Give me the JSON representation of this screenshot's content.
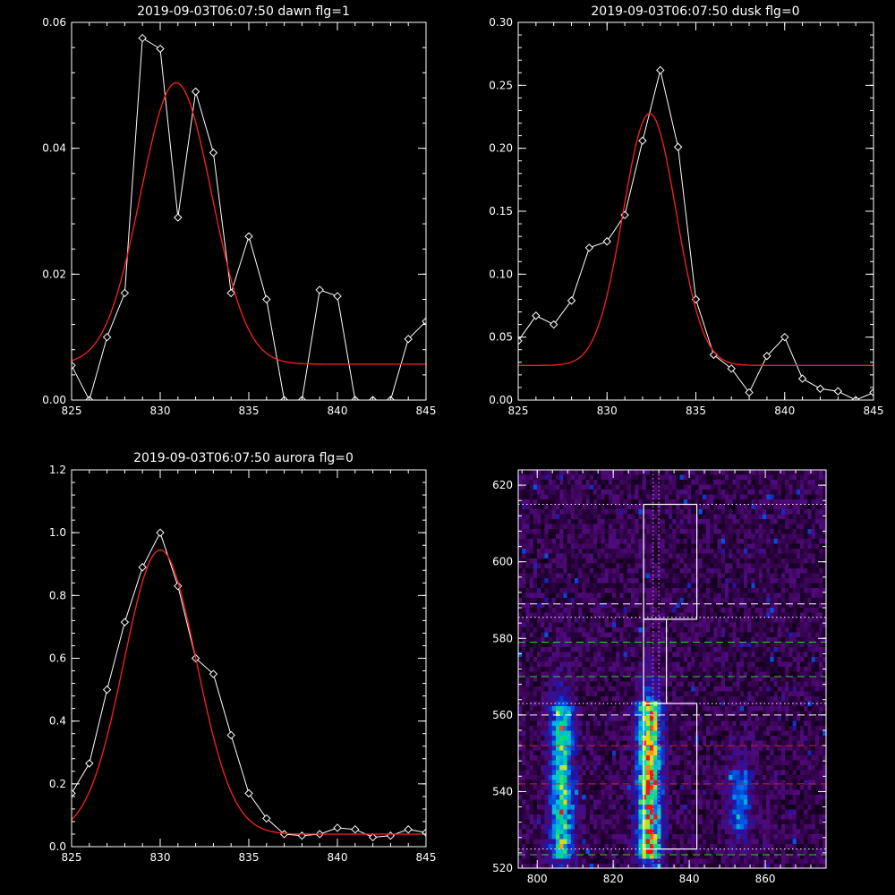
{
  "colors": {
    "background": "#000000",
    "axis": "#ffffff",
    "data_line": "#ffffff",
    "fit_line": "#ff2020",
    "box": "#ffffff",
    "guide_white": "#ffffff",
    "guide_green": "#33cc33",
    "guide_red": "#cc2222",
    "guide_pink": "#ff77ff"
  },
  "chart_data": [
    {
      "type": "line",
      "title": "2019-09-03T06:07:50 dawn flg=1",
      "xlim": [
        825,
        845
      ],
      "ylim": [
        0,
        0.06
      ],
      "xticks": [
        "825",
        "830",
        "835",
        "840",
        "845"
      ],
      "yticks": [
        "0.00",
        "0.02",
        "0.04",
        "0.06"
      ],
      "series": [
        {
          "style": "line-diamond",
          "x": [
            825,
            826,
            827,
            828,
            829,
            830,
            831,
            832,
            833,
            834,
            835,
            836,
            837,
            838,
            839,
            840,
            841,
            842,
            843,
            844,
            845
          ],
          "y": [
            0.0055,
            0.0,
            0.01,
            0.017,
            0.0575,
            0.0558,
            0.029,
            0.049,
            0.0393,
            0.017,
            0.026,
            0.016,
            0.0,
            0.0,
            0.0175,
            0.0165,
            0.0,
            0.0,
            0.0,
            0.0097,
            0.0125
          ]
        },
        {
          "style": "fit",
          "fit": {
            "amplitude": 0.0447,
            "center": 830.9,
            "sigma": 2.0,
            "baseline": 0.0057
          }
        }
      ]
    },
    {
      "type": "line",
      "title": "2019-09-03T06:07:50 dusk flg=0",
      "xlim": [
        825,
        845
      ],
      "ylim": [
        0,
        0.3
      ],
      "xticks": [
        "825",
        "830",
        "835",
        "840",
        "845"
      ],
      "yticks": [
        "0.00",
        "0.05",
        "0.10",
        "0.15",
        "0.20",
        "0.25",
        "0.30"
      ],
      "series": [
        {
          "style": "line-diamond",
          "x": [
            825,
            826,
            827,
            828,
            829,
            830,
            831,
            832,
            833,
            834,
            835,
            836,
            837,
            838,
            839,
            840,
            841,
            842,
            843,
            844,
            845
          ],
          "y": [
            0.047,
            0.067,
            0.06,
            0.079,
            0.121,
            0.126,
            0.147,
            0.206,
            0.262,
            0.201,
            0.08,
            0.036,
            0.025,
            0.006,
            0.035,
            0.05,
            0.017,
            0.009,
            0.007,
            0.0,
            0.006
          ]
        },
        {
          "style": "fit",
          "fit": {
            "amplitude": 0.2,
            "center": 832.4,
            "sigma": 1.5,
            "baseline": 0.0275
          }
        }
      ]
    },
    {
      "type": "line",
      "title": "2019-09-03T06:07:50 aurora flg=0",
      "xlim": [
        825,
        845
      ],
      "ylim": [
        0,
        1.2
      ],
      "xticks": [
        "825",
        "830",
        "835",
        "840",
        "845"
      ],
      "yticks": [
        "0.0",
        "0.2",
        "0.4",
        "0.6",
        "0.8",
        "1.0",
        "1.2"
      ],
      "series": [
        {
          "style": "line-diamond",
          "x": [
            825,
            826,
            827,
            828,
            829,
            830,
            831,
            832,
            833,
            834,
            835,
            836,
            837,
            838,
            839,
            840,
            841,
            842,
            843,
            844,
            845
          ],
          "y": [
            0.17,
            0.265,
            0.5,
            0.715,
            0.89,
            1.0,
            0.83,
            0.6,
            0.55,
            0.355,
            0.17,
            0.09,
            0.04,
            0.035,
            0.04,
            0.06,
            0.055,
            0.03,
            0.035,
            0.055,
            0.045
          ]
        },
        {
          "style": "fit",
          "fit": {
            "amplitude": 0.905,
            "center": 830.0,
            "sigma": 2.05,
            "baseline": 0.04
          }
        }
      ]
    },
    {
      "type": "heatmap",
      "title": "",
      "xlim": [
        795,
        876
      ],
      "ylim": [
        520,
        624
      ],
      "xticks": [
        "800",
        "820",
        "840",
        "860"
      ],
      "yticks": [
        "520",
        "540",
        "560",
        "580",
        "600",
        "620"
      ],
      "bands": [
        {
          "center": 806.5,
          "y_range": [
            523,
            562
          ],
          "intensity": 0.75
        },
        {
          "center": 829.5,
          "y_range": [
            523,
            563
          ],
          "intensity": 1.0
        },
        {
          "center": 853.5,
          "y_range": [
            530,
            546
          ],
          "intensity": 0.45
        }
      ],
      "boxes": [
        {
          "x_range": [
            828.0,
            842.0
          ],
          "y_range": [
            585.0,
            615.0
          ]
        },
        {
          "x_range": [
            828.0,
            834.0
          ],
          "y_range": [
            563.0,
            585.0
          ]
        },
        {
          "x_range": [
            828.0,
            842.0
          ],
          "y_range": [
            525.0,
            563.0
          ]
        }
      ],
      "guides": [
        {
          "y": 615.0,
          "kind": "dotted",
          "color": "white"
        },
        {
          "y": 589.0,
          "kind": "dashed",
          "color": "white"
        },
        {
          "y": 585.5,
          "kind": "dotted",
          "color": "white"
        },
        {
          "y": 579.0,
          "kind": "dashed",
          "color": "green"
        },
        {
          "y": 570.0,
          "kind": "dashed",
          "color": "green"
        },
        {
          "y": 563.0,
          "kind": "dotted",
          "color": "white"
        },
        {
          "y": 560.0,
          "kind": "dashed",
          "color": "white"
        },
        {
          "y": 552.0,
          "kind": "dashed",
          "color": "red"
        },
        {
          "y": 542.0,
          "kind": "dashed",
          "color": "red"
        },
        {
          "y": 525.0,
          "kind": "dotted",
          "color": "white"
        },
        {
          "y": 523.5,
          "kind": "dashed",
          "color": "green"
        }
      ],
      "vguides": [
        {
          "x": 830.5,
          "kind": "dotted",
          "color": "pink"
        },
        {
          "x": 832.0,
          "kind": "dotted",
          "color": "pink"
        }
      ]
    }
  ]
}
